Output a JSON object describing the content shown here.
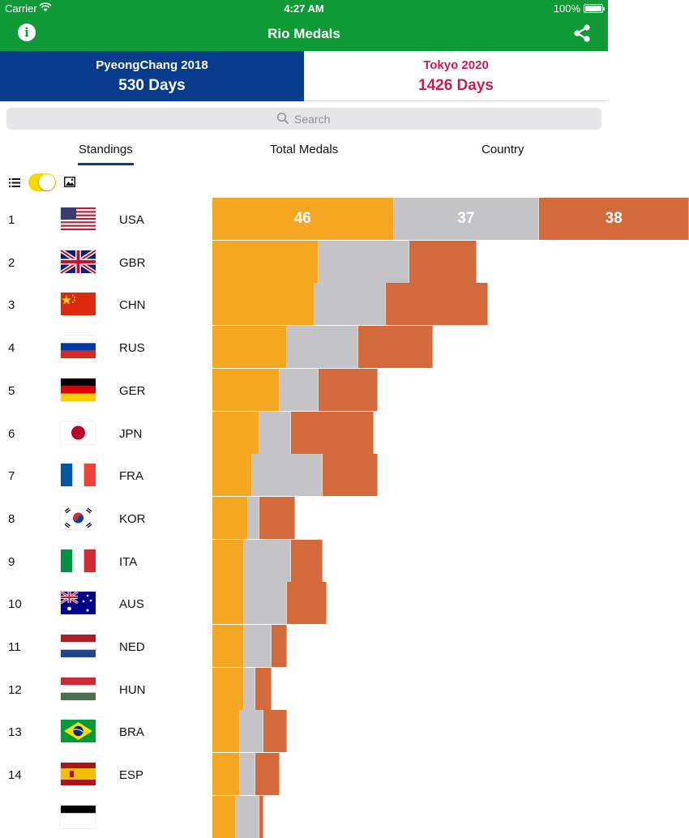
{
  "status_bar": {
    "carrier": "Carrier",
    "time": "4:27 AM",
    "battery": "100%"
  },
  "nav": {
    "title": "Rio Medals",
    "info_icon": "info-icon",
    "share_icon": "share-icon"
  },
  "countdowns": [
    {
      "event": "PyeongChang 2018",
      "days": "530 Days",
      "selected": true
    },
    {
      "event": "Tokyo 2020",
      "days": "1426 Days",
      "selected": false
    }
  ],
  "search": {
    "placeholder": "Search"
  },
  "tabs": [
    {
      "label": "Standings",
      "active": true
    },
    {
      "label": "Total Medals",
      "active": false
    },
    {
      "label": "Country",
      "active": false
    }
  ],
  "view_toggle": {
    "left_icon": "list-icon",
    "right_icon": "image-icon",
    "on": true
  },
  "colors": {
    "header": "#0f9a37",
    "pyeongchang": "#073c8c",
    "tokyo": "#c81f50",
    "gold": "#f5a623",
    "silver": "#c4c4c6",
    "bronze": "#d46a3c",
    "toggle": "#f5d800"
  },
  "standings": [
    {
      "rank": "1",
      "code": "USA",
      "gold": 46,
      "silver": 37,
      "bronze": 38
    },
    {
      "rank": "2",
      "code": "GBR",
      "gold": 27,
      "silver": 23,
      "bronze": 17
    },
    {
      "rank": "3",
      "code": "CHN",
      "gold": 26,
      "silver": 18,
      "bronze": 26
    },
    {
      "rank": "4",
      "code": "RUS",
      "gold": 19,
      "silver": 18,
      "bronze": 19
    },
    {
      "rank": "5",
      "code": "GER",
      "gold": 17,
      "silver": 10,
      "bronze": 15
    },
    {
      "rank": "6",
      "code": "JPN",
      "gold": 12,
      "silver": 8,
      "bronze": 21
    },
    {
      "rank": "7",
      "code": "FRA",
      "gold": 10,
      "silver": 18,
      "bronze": 14
    },
    {
      "rank": "8",
      "code": "KOR",
      "gold": 9,
      "silver": 3,
      "bronze": 9
    },
    {
      "rank": "9",
      "code": "ITA",
      "gold": 8,
      "silver": 12,
      "bronze": 8
    },
    {
      "rank": "10",
      "code": "AUS",
      "gold": 8,
      "silver": 11,
      "bronze": 10
    },
    {
      "rank": "11",
      "code": "NED",
      "gold": 8,
      "silver": 7,
      "bronze": 4
    },
    {
      "rank": "12",
      "code": "HUN",
      "gold": 8,
      "silver": 3,
      "bronze": 4
    },
    {
      "rank": "13",
      "code": "BRA",
      "gold": 7,
      "silver": 6,
      "bronze": 6
    },
    {
      "rank": "14",
      "code": "ESP",
      "gold": 7,
      "silver": 4,
      "bronze": 6
    },
    {
      "rank": "",
      "code": "",
      "gold": 6,
      "silver": 6,
      "bronze": 1
    }
  ]
}
